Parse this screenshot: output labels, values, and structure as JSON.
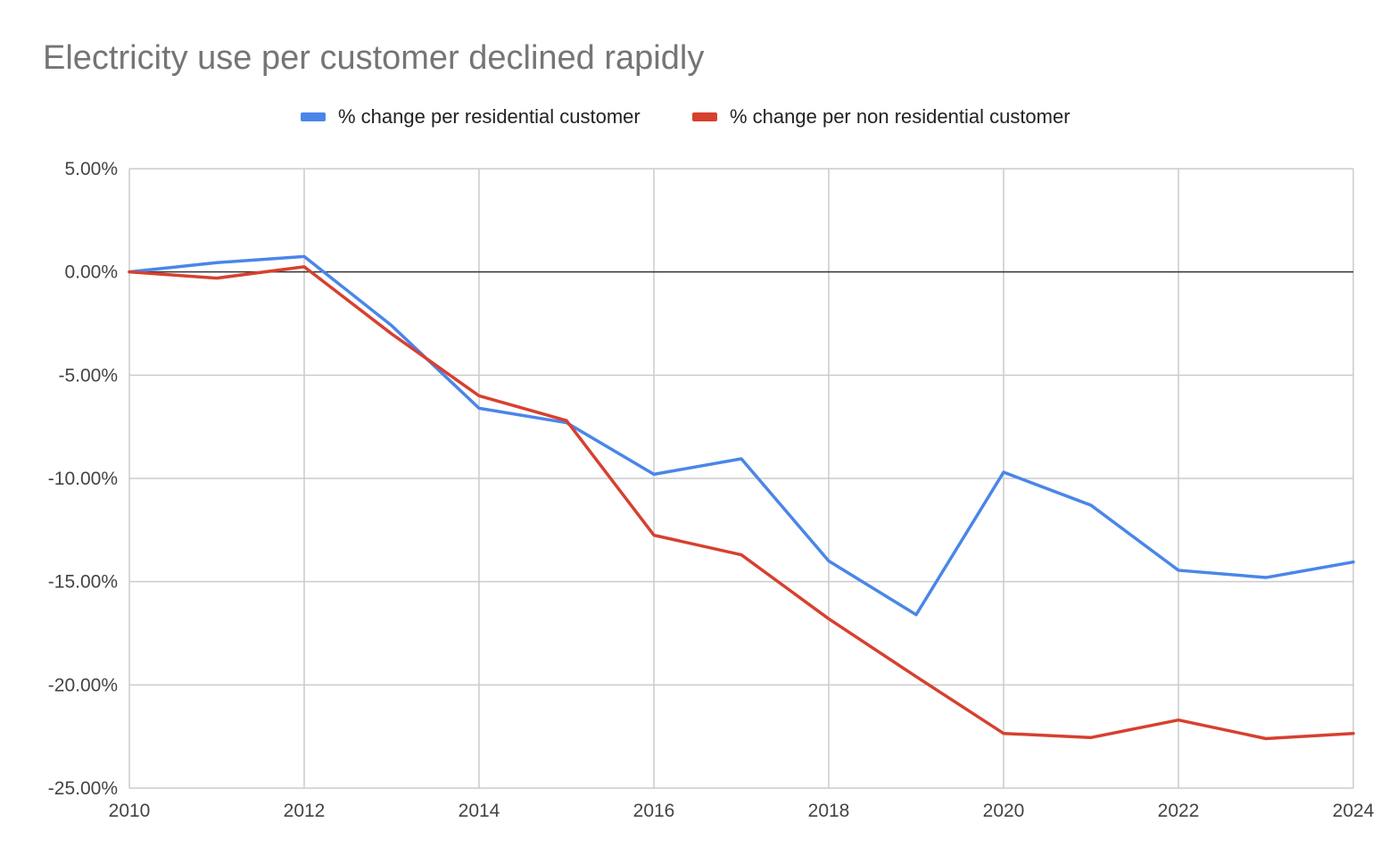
{
  "chart_data": {
    "type": "line",
    "title": "Electricity use per customer declined rapidly",
    "xlabel": "",
    "ylabel": "",
    "x": [
      2010,
      2011,
      2012,
      2013,
      2014,
      2015,
      2016,
      2017,
      2018,
      2019,
      2020,
      2021,
      2022,
      2023,
      2024
    ],
    "xlim": [
      2010,
      2024
    ],
    "ylim": [
      -25,
      5
    ],
    "x_ticks": [
      2010,
      2012,
      2014,
      2016,
      2018,
      2020,
      2022,
      2024
    ],
    "x_tick_labels": [
      "2010",
      "2012",
      "2014",
      "2016",
      "2018",
      "2020",
      "2022",
      "2024"
    ],
    "y_ticks": [
      5,
      0,
      -5,
      -10,
      -15,
      -20,
      -25
    ],
    "y_tick_labels": [
      "5.00%",
      "0.00%",
      "-5.00%",
      "-10.00%",
      "-15.00%",
      "-20.00%",
      "-25.00%"
    ],
    "grid": true,
    "legend_position": "top-center",
    "series": [
      {
        "name": "% change per residential customer",
        "color": "#4a86e8",
        "values": [
          0.0,
          0.45,
          0.75,
          -2.6,
          -6.6,
          -7.3,
          -9.8,
          -9.05,
          -14.0,
          -16.6,
          -9.7,
          -11.3,
          -14.45,
          -14.8,
          -14.05
        ]
      },
      {
        "name": "% change per non residential customer",
        "color": "#d7402f",
        "values": [
          0.0,
          -0.3,
          0.25,
          -3.0,
          -6.0,
          -7.2,
          -12.75,
          -13.7,
          -16.8,
          -19.6,
          -22.35,
          -22.55,
          -21.7,
          -22.6,
          -22.35
        ]
      }
    ]
  }
}
